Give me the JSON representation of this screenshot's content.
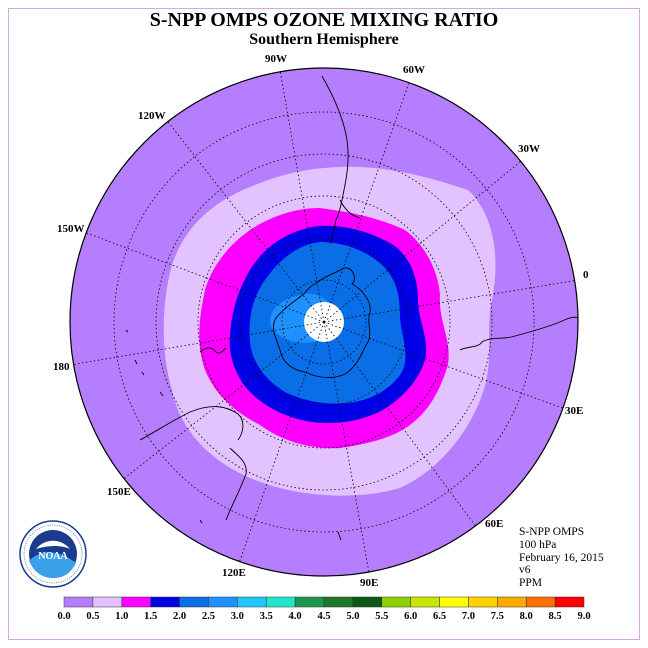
{
  "title": "S-NPP OMPS OZONE MIXING RATIO",
  "subtitle": "Southern Hemisphere",
  "longitude_labels": [
    "90W",
    "60W",
    "30W",
    "0",
    "30E",
    "60E",
    "90E",
    "120E",
    "150E",
    "180",
    "150W",
    "120W"
  ],
  "info": {
    "instrument": "S-NPP OMPS",
    "pressure": "100 hPa",
    "date": "February 16, 2015",
    "version": "v6",
    "units": "PPM"
  },
  "logo": {
    "text": "NOAA",
    "ring_text": "NATIONAL OCEANIC AND ATMOSPHERIC ADMINISTRATION"
  },
  "colorbar": {
    "ticks": [
      "0.0",
      "0.5",
      "1.0",
      "1.5",
      "2.0",
      "2.5",
      "3.0",
      "3.5",
      "4.0",
      "4.5",
      "5.0",
      "5.5",
      "6.0",
      "6.5",
      "7.0",
      "7.5",
      "8.0",
      "8.5",
      "9.0"
    ],
    "colors": [
      "#b47eff",
      "#e3c3ff",
      "#ff00ff",
      "#0000e6",
      "#0a6ee6",
      "#1e90ff",
      "#1ec8ff",
      "#1ee6c8",
      "#1e9650",
      "#1e7828",
      "#0a5a14",
      "#8cd200",
      "#c8e600",
      "#ffff00",
      "#ffd200",
      "#ffaa00",
      "#ff6e00",
      "#ff0000",
      "#a00000",
      "#784632"
    ]
  }
}
